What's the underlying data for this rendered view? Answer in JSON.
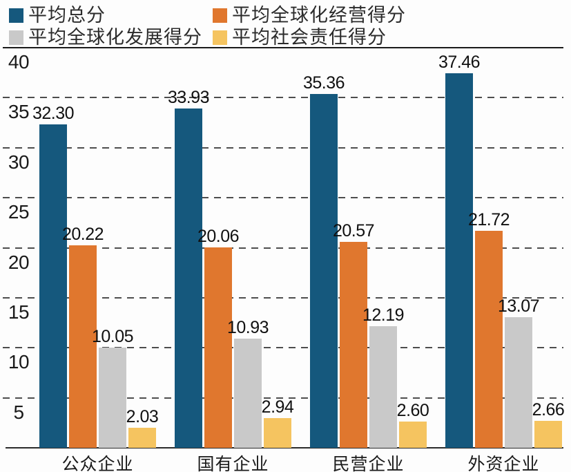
{
  "chart_data": {
    "type": "bar",
    "title": "",
    "categories": [
      "公众企业",
      "国有企业",
      "民营企业",
      "外资企业"
    ],
    "series": [
      {
        "name": "平均总分",
        "color": "#15587D",
        "values": [
          32.3,
          33.93,
          35.36,
          37.46
        ],
        "labels": [
          "32.30",
          "33.93",
          "35.36",
          "37.46"
        ]
      },
      {
        "name": "平均全球化经营得分",
        "color": "#E0772E",
        "values": [
          20.22,
          20.06,
          20.57,
          21.72
        ],
        "labels": [
          "20.22",
          "20.06",
          "20.57",
          "21.72"
        ]
      },
      {
        "name": "平均全球化发展得分",
        "color": "#C9C9C9",
        "values": [
          10.05,
          10.93,
          12.19,
          13.07
        ],
        "labels": [
          "10.05",
          "10.93",
          "12.19",
          "13.07"
        ]
      },
      {
        "name": "平均社会责任得分",
        "color": "#F5C460",
        "values": [
          2.03,
          2.94,
          2.6,
          2.66
        ],
        "labels": [
          "2.03",
          "2.94",
          "2.60",
          "2.66"
        ]
      }
    ],
    "xlabel": "",
    "ylabel": "",
    "ylim": [
      0,
      40
    ],
    "yticks": [
      5,
      10,
      15,
      20,
      25,
      30,
      35,
      40
    ],
    "grid": "horizontal-dashed, top line solid",
    "legend_position": "top-left, 2 columns x 2 rows",
    "value_labels": "above each bar, 2 decimals",
    "colors": {
      "text": "#1a1a1a",
      "gridline": "#4d4d4d",
      "axis_line": "#2b2b2b",
      "background": "#fdfdfd"
    }
  }
}
